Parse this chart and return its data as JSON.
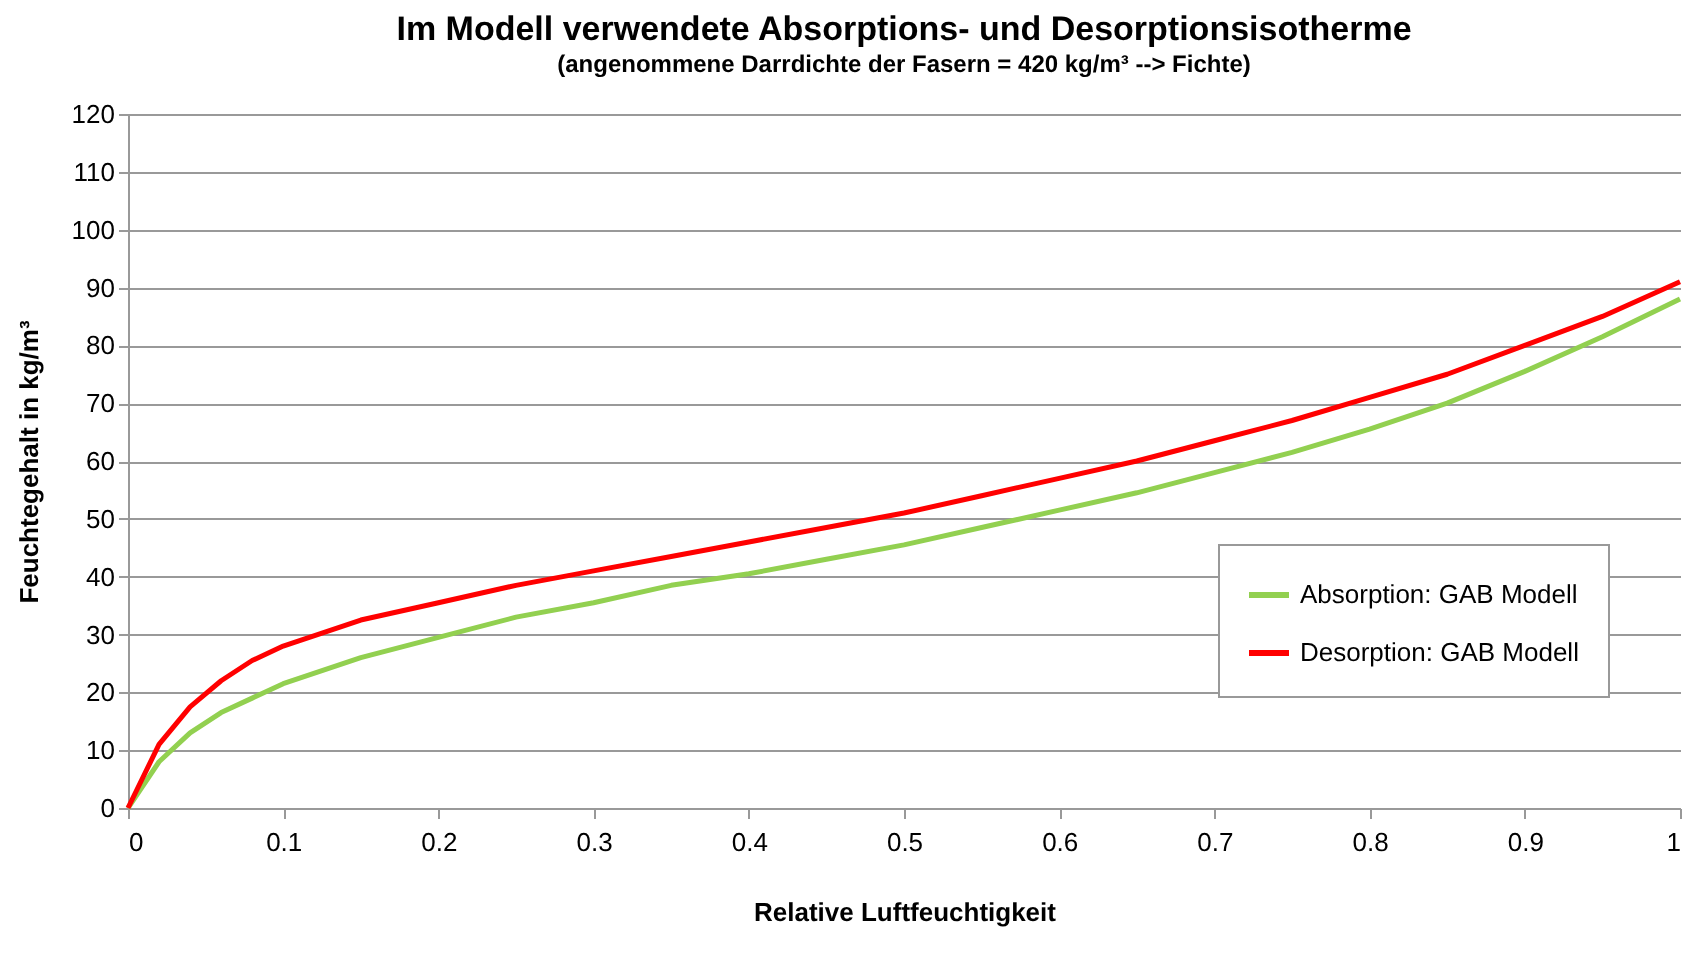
{
  "chart_data": {
    "type": "line",
    "title": "Im Modell verwendete Absorptions- und Desorptionsisotherme",
    "subtitle": "(angenommene Darrdichte der Fasern = 420 kg/m³ --> Fichte)",
    "xlabel": "Relative Luftfeuchtigkeit",
    "ylabel": "Feuchtegehalt in kg/m³",
    "x": [
      0,
      0.02,
      0.04,
      0.06,
      0.08,
      0.1,
      0.15,
      0.2,
      0.25,
      0.3,
      0.35,
      0.4,
      0.45,
      0.5,
      0.55,
      0.6,
      0.65,
      0.7,
      0.75,
      0.8,
      0.85,
      0.9,
      0.95,
      1
    ],
    "series": [
      {
        "name": "Absorption: GAB Modell",
        "color": "#92d050",
        "values": [
          0,
          8,
          13,
          16.5,
          19,
          21.5,
          26,
          29.5,
          33,
          35.5,
          38.5,
          40.5,
          43,
          45.5,
          48.5,
          51.5,
          54.5,
          58,
          61.5,
          65.5,
          70,
          75.5,
          81.5,
          88
        ]
      },
      {
        "name": "Desorption: GAB Modell",
        "color": "#ff0000",
        "values": [
          0,
          11,
          17.5,
          22,
          25.5,
          28,
          32.5,
          35.5,
          38.5,
          41,
          43.5,
          46,
          48.5,
          51,
          54,
          57,
          60,
          63.5,
          67,
          71,
          75,
          80,
          85,
          91
        ]
      }
    ],
    "xlim": [
      0,
      1
    ],
    "xticks": [
      0,
      0.1,
      0.2,
      0.3,
      0.4,
      0.5,
      0.6,
      0.7,
      0.8,
      0.9,
      1
    ],
    "ylim": [
      0,
      120
    ],
    "yticks": [
      0,
      10,
      20,
      30,
      40,
      50,
      60,
      70,
      80,
      90,
      100,
      110,
      120
    ],
    "grid": "y",
    "legend": "bottom right",
    "marker": "none",
    "line_style": "solid"
  }
}
